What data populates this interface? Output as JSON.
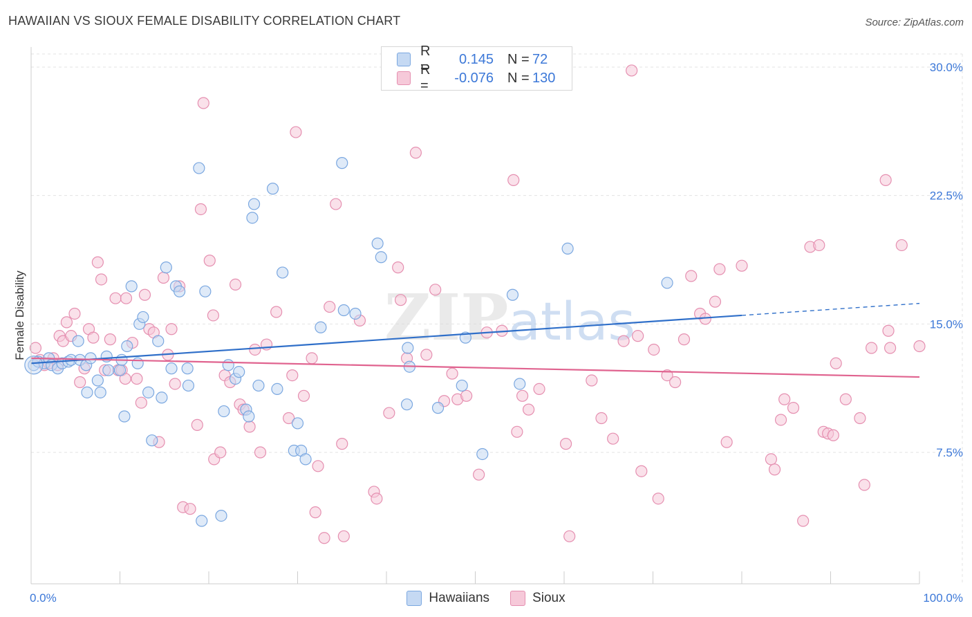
{
  "title": "HAWAIIAN VS SIOUX FEMALE DISABILITY CORRELATION CHART",
  "source": "Source: ZipAtlas.com",
  "watermark": {
    "zip": "ZIP",
    "atlas": "atlas"
  },
  "legend": {
    "rows": [
      {
        "r_label": "R =",
        "r_value": "0.145",
        "n_label": "N =",
        "n_value": "72"
      },
      {
        "r_label": "R =",
        "r_value": "-0.076",
        "n_label": "N =",
        "n_value": "130"
      }
    ]
  },
  "chart_data": {
    "type": "scatter",
    "title": "HAWAIIAN VS SIOUX FEMALE DISABILITY CORRELATION CHART",
    "xlabel": "",
    "ylabel": "Female Disability",
    "xlim": [
      0,
      100
    ],
    "ylim": [
      0,
      30.5
    ],
    "x_tick_labels": [
      "0.0%",
      "100.0%"
    ],
    "y_ticks": [
      7.5,
      15.0,
      22.5,
      30.0
    ],
    "y_tick_labels": [
      "7.5%",
      "15.0%",
      "22.5%",
      "30.0%"
    ],
    "grid": true,
    "legend_position": "top-center",
    "series": [
      {
        "name": "Hawaiians",
        "color": "#7aa7e0",
        "fill": "#c5d9f3",
        "line_color": "#2f6fc9",
        "r": 0.145,
        "n": 72,
        "trend": {
          "x0": 0,
          "y0": 12.7,
          "x1": 80,
          "y1": 15.5,
          "dashed_to_x": 100,
          "dashed_to_y": 16.2
        },
        "points": [
          [
            0.3,
            12.6
          ],
          [
            0.8,
            12.8
          ],
          [
            1.5,
            12.7
          ],
          [
            2.0,
            13.0
          ],
          [
            2.3,
            12.6
          ],
          [
            3.0,
            12.4
          ],
          [
            3.5,
            12.7
          ],
          [
            4.2,
            12.8
          ],
          [
            4.5,
            12.9
          ],
          [
            5.5,
            12.9
          ],
          [
            5.3,
            14.0
          ],
          [
            6.2,
            12.6
          ],
          [
            6.3,
            11.0
          ],
          [
            6.7,
            13.0
          ],
          [
            7.5,
            11.7
          ],
          [
            7.8,
            11.0
          ],
          [
            8.5,
            13.1
          ],
          [
            8.7,
            12.3
          ],
          [
            10.0,
            12.3
          ],
          [
            10.2,
            12.9
          ],
          [
            10.5,
            9.6
          ],
          [
            10.8,
            13.7
          ],
          [
            11.3,
            17.2
          ],
          [
            12.0,
            12.7
          ],
          [
            12.2,
            15.0
          ],
          [
            12.6,
            15.4
          ],
          [
            13.2,
            11.0
          ],
          [
            13.6,
            8.2
          ],
          [
            14.3,
            14.0
          ],
          [
            14.7,
            10.7
          ],
          [
            15.2,
            18.3
          ],
          [
            15.8,
            12.4
          ],
          [
            16.3,
            17.2
          ],
          [
            16.7,
            16.9
          ],
          [
            17.6,
            12.4
          ],
          [
            17.7,
            11.4
          ],
          [
            18.9,
            24.1
          ],
          [
            19.2,
            3.5
          ],
          [
            19.6,
            16.9
          ],
          [
            21.4,
            3.8
          ],
          [
            21.7,
            9.9
          ],
          [
            22.2,
            12.6
          ],
          [
            23.0,
            11.8
          ],
          [
            23.4,
            12.2
          ],
          [
            24.2,
            10.0
          ],
          [
            24.5,
            9.6
          ],
          [
            24.9,
            21.2
          ],
          [
            25.1,
            22.0
          ],
          [
            25.6,
            11.4
          ],
          [
            27.2,
            22.9
          ],
          [
            27.7,
            11.2
          ],
          [
            28.3,
            18.0
          ],
          [
            29.6,
            7.6
          ],
          [
            30.0,
            9.2
          ],
          [
            30.4,
            7.6
          ],
          [
            30.9,
            7.1
          ],
          [
            32.6,
            14.8
          ],
          [
            35.0,
            24.4
          ],
          [
            35.2,
            15.8
          ],
          [
            36.5,
            15.6
          ],
          [
            39.0,
            19.7
          ],
          [
            39.4,
            18.9
          ],
          [
            42.3,
            10.3
          ],
          [
            42.4,
            13.6
          ],
          [
            42.6,
            12.5
          ],
          [
            45.8,
            10.1
          ],
          [
            48.5,
            11.4
          ],
          [
            48.9,
            14.2
          ],
          [
            50.8,
            7.4
          ],
          [
            54.2,
            16.7
          ],
          [
            55.0,
            11.5
          ],
          [
            60.4,
            19.4
          ],
          [
            71.6,
            17.4
          ]
        ]
      },
      {
        "name": "Sioux",
        "color": "#e58fb0",
        "fill": "#f6c9d9",
        "line_color": "#e0638f",
        "r": -0.076,
        "n": 130,
        "trend": {
          "x0": 0,
          "y0": 13.0,
          "x1": 100,
          "y1": 11.9
        },
        "points": [
          [
            0.5,
            13.6
          ],
          [
            1.0,
            12.9
          ],
          [
            1.5,
            12.6
          ],
          [
            2.0,
            12.7
          ],
          [
            2.5,
            13.0
          ],
          [
            3.0,
            12.6
          ],
          [
            3.2,
            14.3
          ],
          [
            3.6,
            14.0
          ],
          [
            4.0,
            15.1
          ],
          [
            4.5,
            14.3
          ],
          [
            4.9,
            15.6
          ],
          [
            5.5,
            11.6
          ],
          [
            6.0,
            12.4
          ],
          [
            6.5,
            14.7
          ],
          [
            7.0,
            14.2
          ],
          [
            7.5,
            18.6
          ],
          [
            7.9,
            17.6
          ],
          [
            8.3,
            12.3
          ],
          [
            8.9,
            14.1
          ],
          [
            9.5,
            16.5
          ],
          [
            9.8,
            12.3
          ],
          [
            10.2,
            12.3
          ],
          [
            10.6,
            11.8
          ],
          [
            10.7,
            16.5
          ],
          [
            11.4,
            13.9
          ],
          [
            11.9,
            11.8
          ],
          [
            12.4,
            10.4
          ],
          [
            12.8,
            16.7
          ],
          [
            13.3,
            14.7
          ],
          [
            13.8,
            14.5
          ],
          [
            14.4,
            8.1
          ],
          [
            14.9,
            17.7
          ],
          [
            15.4,
            13.2
          ],
          [
            15.8,
            14.7
          ],
          [
            16.2,
            11.5
          ],
          [
            16.7,
            17.2
          ],
          [
            17.1,
            4.3
          ],
          [
            17.9,
            4.2
          ],
          [
            18.7,
            9.1
          ],
          [
            19.1,
            21.7
          ],
          [
            19.4,
            27.9
          ],
          [
            20.1,
            18.7
          ],
          [
            20.5,
            15.5
          ],
          [
            20.6,
            7.1
          ],
          [
            21.3,
            7.5
          ],
          [
            21.8,
            12.0
          ],
          [
            22.4,
            11.6
          ],
          [
            23.0,
            17.3
          ],
          [
            23.5,
            10.3
          ],
          [
            23.9,
            10.0
          ],
          [
            24.6,
            9.0
          ],
          [
            25.2,
            13.5
          ],
          [
            25.8,
            7.5
          ],
          [
            26.5,
            13.8
          ],
          [
            27.6,
            15.7
          ],
          [
            29.0,
            9.5
          ],
          [
            29.4,
            12.0
          ],
          [
            29.8,
            26.2
          ],
          [
            30.7,
            10.8
          ],
          [
            31.6,
            13.0
          ],
          [
            32.0,
            4.0
          ],
          [
            32.3,
            6.7
          ],
          [
            33.0,
            2.5
          ],
          [
            33.6,
            16.0
          ],
          [
            34.3,
            22.0
          ],
          [
            35.0,
            8.0
          ],
          [
            35.2,
            2.6
          ],
          [
            37.0,
            15.2
          ],
          [
            38.6,
            5.2
          ],
          [
            38.9,
            4.8
          ],
          [
            40.3,
            9.8
          ],
          [
            41.3,
            18.3
          ],
          [
            41.6,
            16.4
          ],
          [
            42.3,
            13.0
          ],
          [
            43.3,
            25.0
          ],
          [
            44.5,
            13.2
          ],
          [
            45.5,
            17.0
          ],
          [
            46.5,
            10.5
          ],
          [
            47.4,
            12.1
          ],
          [
            48.0,
            10.6
          ],
          [
            49.0,
            10.8
          ],
          [
            50.4,
            6.2
          ],
          [
            51.3,
            14.5
          ],
          [
            53.0,
            14.6
          ],
          [
            54.3,
            23.4
          ],
          [
            54.7,
            8.7
          ],
          [
            55.3,
            10.8
          ],
          [
            56.0,
            10.0
          ],
          [
            57.2,
            11.2
          ],
          [
            60.2,
            8.0
          ],
          [
            60.6,
            2.6
          ],
          [
            63.1,
            11.7
          ],
          [
            64.2,
            9.5
          ],
          [
            65.5,
            8.3
          ],
          [
            66.7,
            14.0
          ],
          [
            67.6,
            29.8
          ],
          [
            68.3,
            14.3
          ],
          [
            68.7,
            6.4
          ],
          [
            70.1,
            13.5
          ],
          [
            70.6,
            4.8
          ],
          [
            71.6,
            12.0
          ],
          [
            72.5,
            11.6
          ],
          [
            73.5,
            14.1
          ],
          [
            74.3,
            17.8
          ],
          [
            75.3,
            15.6
          ],
          [
            75.9,
            15.3
          ],
          [
            77.0,
            16.3
          ],
          [
            77.5,
            18.2
          ],
          [
            78.3,
            8.1
          ],
          [
            80.0,
            18.4
          ],
          [
            83.3,
            7.1
          ],
          [
            83.7,
            6.5
          ],
          [
            84.4,
            9.4
          ],
          [
            84.8,
            10.6
          ],
          [
            85.8,
            10.1
          ],
          [
            86.9,
            3.5
          ],
          [
            87.7,
            19.5
          ],
          [
            88.7,
            19.6
          ],
          [
            89.2,
            8.7
          ],
          [
            89.7,
            8.6
          ],
          [
            90.3,
            8.5
          ],
          [
            90.6,
            12.7
          ],
          [
            91.7,
            10.6
          ],
          [
            93.3,
            9.5
          ],
          [
            93.8,
            5.6
          ],
          [
            94.6,
            13.6
          ],
          [
            96.2,
            23.4
          ],
          [
            96.5,
            14.6
          ],
          [
            96.7,
            13.6
          ],
          [
            98.0,
            19.6
          ],
          [
            100.0,
            13.7
          ]
        ]
      }
    ]
  }
}
